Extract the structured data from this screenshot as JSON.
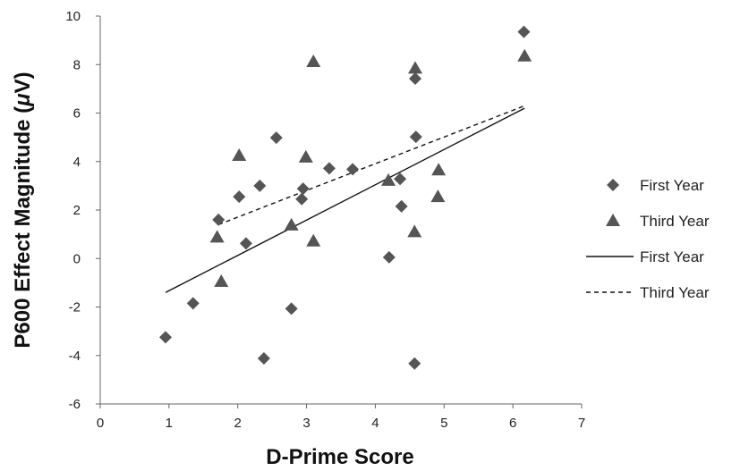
{
  "chart_data": {
    "type": "scatter",
    "title": "",
    "xlabel": "D-Prime Score",
    "ylabel_prefix": "P600 Effect Magnitude (",
    "ylabel_mu": "μ",
    "ylabel_suffix": "V)",
    "xlim": [
      0,
      7
    ],
    "ylim": [
      -6,
      10
    ],
    "xticks": [
      "0",
      "1",
      "2",
      "3",
      "4",
      "5",
      "6",
      "7"
    ],
    "yticks": [
      "-6",
      "-4",
      "-2",
      "0",
      "2",
      "4",
      "6",
      "8",
      "10"
    ],
    "grid": false,
    "legend_position": "right",
    "marker_color": "#555555",
    "series": [
      {
        "name": "First Year",
        "marker": "diamond",
        "points": [
          [
            0.95,
            -3.25
          ],
          [
            1.35,
            -1.85
          ],
          [
            1.72,
            1.6
          ],
          [
            2.02,
            2.55
          ],
          [
            2.12,
            0.62
          ],
          [
            2.32,
            3.0
          ],
          [
            2.38,
            -4.12
          ],
          [
            2.56,
            4.98
          ],
          [
            2.78,
            -2.07
          ],
          [
            2.93,
            2.45
          ],
          [
            2.95,
            2.88
          ],
          [
            3.33,
            3.72
          ],
          [
            3.67,
            3.68
          ],
          [
            4.2,
            0.05
          ],
          [
            4.36,
            3.28
          ],
          [
            4.38,
            2.15
          ],
          [
            4.57,
            -4.33
          ],
          [
            4.58,
            7.42
          ],
          [
            4.59,
            5.02
          ],
          [
            6.16,
            9.35
          ]
        ]
      },
      {
        "name": "Third Year",
        "marker": "triangle",
        "points": [
          [
            1.7,
            0.88
          ],
          [
            1.76,
            -0.95
          ],
          [
            2.02,
            4.25
          ],
          [
            2.78,
            1.38
          ],
          [
            2.99,
            4.18
          ],
          [
            3.1,
            0.72
          ],
          [
            3.1,
            8.12
          ],
          [
            4.19,
            3.22
          ],
          [
            4.57,
            1.1
          ],
          [
            4.58,
            7.85
          ],
          [
            4.91,
            2.55
          ],
          [
            4.92,
            3.65
          ],
          [
            6.17,
            8.35
          ]
        ]
      },
      {
        "name": "First Year",
        "line": "solid",
        "points": [
          [
            0.95,
            -1.4
          ],
          [
            6.17,
            6.2
          ]
        ]
      },
      {
        "name": "Third Year",
        "line": "dashed",
        "points": [
          [
            1.72,
            1.4
          ],
          [
            6.17,
            6.3
          ]
        ]
      }
    ]
  }
}
